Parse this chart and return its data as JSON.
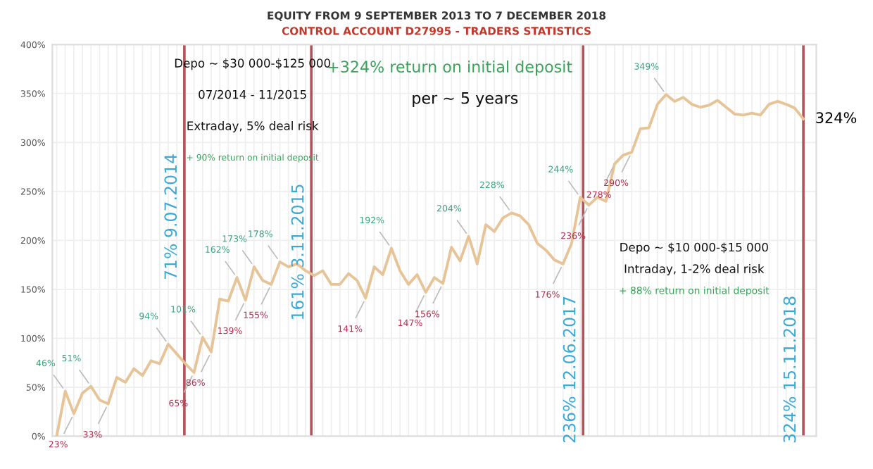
{
  "chart_data": {
    "type": "line",
    "title": "EQUITY FROM 9 SEPTEMBER 2013 TO 7 DECEMBER 2018",
    "subtitle": "CONTROL ACCOUNT D27995 - TRADERS STATISTICS",
    "categories": [
      null,
      null,
      null,
      null,
      null,
      null,
      null,
      null,
      null,
      null,
      null,
      null,
      null,
      null,
      null,
      null,
      null,
      null,
      null,
      null,
      null,
      null,
      null,
      null,
      null,
      null,
      null,
      null,
      null,
      null,
      null,
      null,
      null,
      null,
      null,
      null,
      null,
      null,
      null,
      null,
      null,
      null,
      null,
      null,
      null,
      null,
      null,
      null,
      null,
      null,
      null,
      null,
      null,
      null,
      null,
      null,
      null,
      null,
      null,
      null,
      null,
      null,
      null,
      null,
      null,
      null,
      null,
      null,
      null,
      null,
      null,
      null,
      null,
      null,
      null,
      null,
      null,
      null,
      null,
      null,
      null,
      null,
      null,
      null,
      null,
      null,
      null,
      null
    ],
    "series": [
      {
        "color": "#e6c497",
        "values": [
          0,
          46,
          23,
          44,
          51,
          37,
          33,
          60,
          55,
          69,
          62,
          77,
          74,
          94,
          84,
          74,
          65,
          101,
          86,
          140,
          138,
          162,
          139,
          173,
          159,
          155,
          178,
          173,
          176,
          169,
          164,
          169,
          155,
          155,
          166,
          159,
          141,
          173,
          165,
          192,
          169,
          155,
          165,
          147,
          162,
          156,
          193,
          179,
          204,
          176,
          216,
          209,
          223,
          228,
          225,
          216,
          197,
          190,
          180,
          176,
          197,
          244,
          236,
          244,
          240,
          278,
          287,
          290,
          314,
          315,
          339,
          349,
          342,
          346,
          339,
          336,
          338,
          343,
          336,
          329,
          328,
          330,
          328,
          339,
          342,
          339,
          335,
          324
        ],
        "value_labels": [
          null,
          "46%",
          "23%",
          null,
          "51%",
          null,
          "33%",
          null,
          null,
          null,
          null,
          null,
          null,
          "94%",
          null,
          null,
          "65%",
          "101%",
          "86%",
          null,
          null,
          "162%",
          "139%",
          "173%",
          null,
          "155%",
          "178%",
          null,
          null,
          null,
          null,
          null,
          null,
          null,
          null,
          null,
          "141%",
          null,
          null,
          "192%",
          null,
          null,
          null,
          "147%",
          null,
          "156%",
          null,
          null,
          "204%",
          null,
          null,
          null,
          null,
          "228%",
          null,
          null,
          null,
          null,
          null,
          "176%",
          null,
          "244%",
          "236%",
          null,
          null,
          "278%",
          null,
          "290%",
          null,
          null,
          null,
          "349%",
          null,
          null,
          null,
          null,
          null,
          null,
          null,
          null,
          null,
          null,
          null,
          null,
          null,
          null,
          null,
          "324%"
        ]
      }
    ],
    "ylim": [
      0,
      400
    ],
    "yticks": [
      {
        "value": 0,
        "label": "0%"
      },
      {
        "value": 50,
        "label": "50%"
      },
      {
        "value": 100,
        "label": "100%"
      },
      {
        "value": 150,
        "label": "150%"
      },
      {
        "value": 200,
        "label": "200%"
      },
      {
        "value": 250,
        "label": "250%"
      },
      {
        "value": 300,
        "label": "300%"
      },
      {
        "value": 350,
        "label": "350%"
      },
      {
        "value": 400,
        "label": "400%"
      }
    ],
    "tick_labels": "y",
    "grid": true,
    "marker": "none",
    "line_style": "solid",
    "annotations": [
      "71% 9.07.2014",
      "161% 3.11.2015",
      "236% 12.06.2017",
      "324% 15.11.2018",
      "Depo ~ $30 000-$125 000",
      "07/2014 - 11/2015",
      "Extraday, 5% deal risk",
      "+ 90% return on initial deposit",
      "+324% return on initial deposit",
      "per ~ 5 years",
      "Depo ~ $10 000-$15 000",
      "Intraday, 1-2% deal risk",
      "+ 88% return on initial deposit"
    ]
  }
}
